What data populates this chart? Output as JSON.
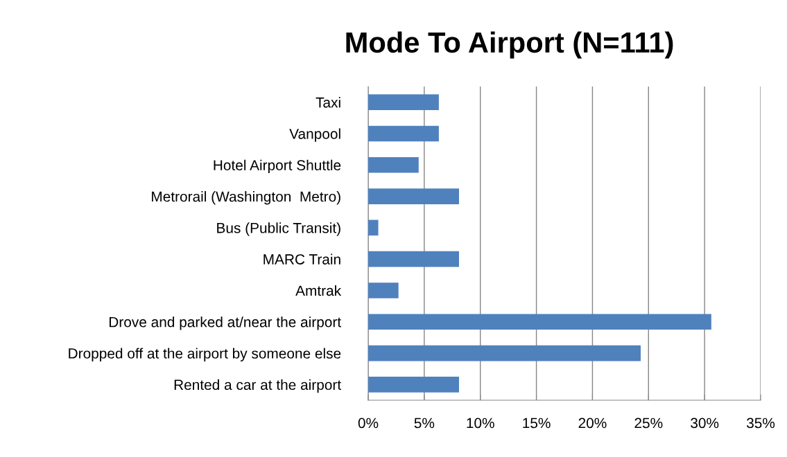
{
  "chart_data": {
    "type": "bar",
    "orientation": "horizontal",
    "title": "Mode To Airport (N=111)",
    "categories": [
      "Taxi",
      "Vanpool",
      "Hotel Airport Shuttle",
      "Metrorail (Washington  Metro)",
      "Bus (Public Transit)",
      "MARC Train",
      "Amtrak",
      "Drove and parked at/near the airport",
      "Dropped off at the airport by someone else",
      "Rented a car at the airport"
    ],
    "values": [
      6.3,
      6.3,
      4.5,
      8.1,
      0.9,
      8.1,
      2.7,
      30.6,
      24.3,
      8.1
    ],
    "color": "#4f81bd",
    "xlim": [
      0,
      35
    ],
    "xticks": [
      {
        "value": 0,
        "label": "0%"
      },
      {
        "value": 5,
        "label": "5%"
      },
      {
        "value": 10,
        "label": "10%"
      },
      {
        "value": 15,
        "label": "15%"
      },
      {
        "value": 20,
        "label": "20%"
      },
      {
        "value": 25,
        "label": "25%"
      },
      {
        "value": 30,
        "label": "30%"
      },
      {
        "value": 35,
        "label": "35%"
      }
    ],
    "grid": "x",
    "legend": false
  }
}
